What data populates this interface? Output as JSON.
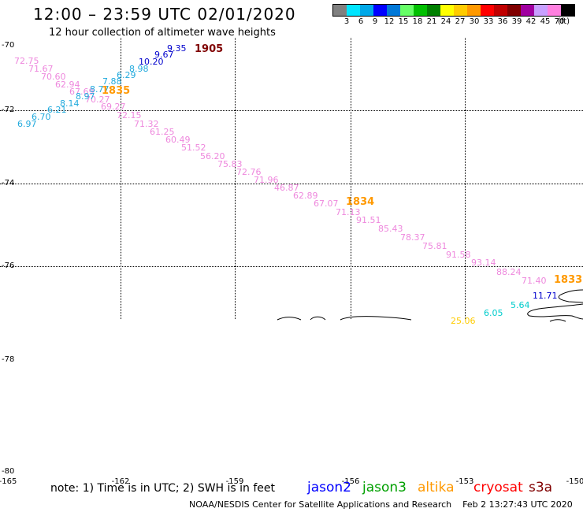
{
  "header": {
    "title": "12:00 – 23:59 UTC 02/01/2020",
    "subtitle": "12 hour collection of altimeter wave heights"
  },
  "legend": {
    "colors": [
      "#808080",
      "#00e5ff",
      "#00a8e8",
      "#0000ff",
      "#0078d8",
      "#66ff66",
      "#00c000",
      "#008000",
      "#ffff00",
      "#ffcc00",
      "#ff9900",
      "#ff0000",
      "#c00000",
      "#800000",
      "#a000a0",
      "#c8a0ff",
      "#ff80e0",
      "#000000"
    ],
    "labels": [
      "3",
      "6",
      "9",
      "12",
      "15",
      "18",
      "21",
      "24",
      "27",
      "30",
      "33",
      "36",
      "39",
      "42",
      "45",
      "70"
    ],
    "unit": "(ft)"
  },
  "axes": {
    "lat_labels": [
      "-70",
      "-72",
      "-74",
      "-76",
      "-78",
      "-78",
      "-80"
    ],
    "lon_labels": [
      "-165",
      "-162",
      "-159",
      "-156",
      "-153",
      "-150"
    ]
  },
  "tracks": [
    {
      "color": "#ee88dd",
      "points": [
        "72.75",
        "71.67",
        "70.60",
        "62.94",
        "67.69",
        "70.27",
        "69.27",
        "72.15",
        "71.32",
        "61.25",
        "60.49",
        "51.52",
        "56.20",
        "75.83",
        "72.76",
        "71.96",
        "46.87",
        "62.89",
        "67.07",
        "71.13",
        "91.51",
        "85.43",
        "78.37",
        "75.81",
        "91.58",
        "93.14",
        "88.24",
        "71.40"
      ]
    },
    {
      "color": "#22aadd",
      "points": [
        "6.97",
        "6.70",
        "6.21",
        "8.14",
        "8.97",
        "8.77",
        "7.88",
        "6.29",
        "8.98"
      ]
    },
    {
      "color": "#0000cc",
      "points": [
        "10.20",
        "9.67",
        "9.35",
        "11.71"
      ]
    },
    {
      "color": "#00cccc",
      "points": [
        "6.05",
        "5.64"
      ]
    },
    {
      "color": "#ffcc00",
      "points": [
        "25.06"
      ]
    }
  ],
  "time_stamps": [
    {
      "text": "1905",
      "color": "#800000"
    },
    {
      "text": "1835",
      "color": "#ff9900"
    },
    {
      "text": "1834",
      "color": "#ff9900"
    },
    {
      "text": "1833",
      "color": "#ff9900"
    }
  ],
  "note": "note: 1) Time is in UTC; 2) SWH is in feet",
  "satellites": [
    {
      "name": "jason2",
      "color": "#0000ff"
    },
    {
      "name": "jason3",
      "color": "#00a000"
    },
    {
      "name": "altika",
      "color": "#ff9900"
    },
    {
      "name": "cryosat",
      "color": "#ff0000"
    },
    {
      "name": "s3a",
      "color": "#800000"
    }
  ],
  "credit": "NOAA/NESDIS Center for Satellite Applications and Research",
  "timestamp": "Feb  2 13:27:43 UTC 2020"
}
